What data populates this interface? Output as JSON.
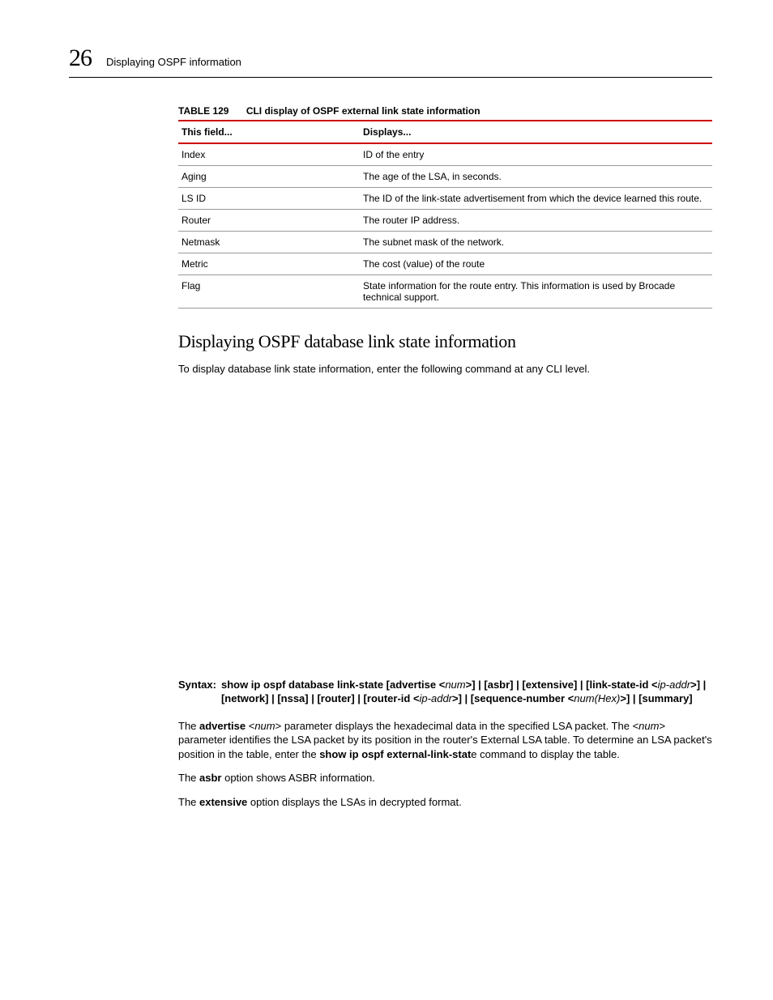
{
  "header": {
    "page_number": "26",
    "title": "Displaying OSPF information"
  },
  "table": {
    "label": "TABLE 129",
    "caption": "CLI display of OSPF external link state information",
    "columns": [
      "This field...",
      "Displays..."
    ],
    "rows": [
      [
        "Index",
        "ID of the entry"
      ],
      [
        "Aging",
        "The age of the LSA, in seconds."
      ],
      [
        "LS ID",
        "The ID of the link-state advertisement from which the device learned this route."
      ],
      [
        "Router",
        "The router IP address."
      ],
      [
        "Netmask",
        "The subnet mask of the network."
      ],
      [
        "Metric",
        "The cost (value) of the route"
      ],
      [
        "Flag",
        "State information for the route entry. This information is used by Brocade technical support."
      ]
    ]
  },
  "section": {
    "heading": "Displaying OSPF database link state information",
    "intro": "To display database link state information, enter the following command at any CLI level.",
    "syntax_label": "Syntax:",
    "syntax": {
      "s0": "show ip ospf database link-state [advertise <",
      "p0": "num",
      "s1": ">] | [asbr] | [extensive] | [link-state-id <",
      "p1": "ip-addr",
      "s2": ">] | [network] | [nssa] | [router] | [router-id <",
      "p2": "ip-addr",
      "s3": ">] | [sequence-number <",
      "p3": "num(Hex)",
      "s4": ">] | [summary]"
    },
    "para1": {
      "t0": "The ",
      "b0": "advertise",
      "t1": " <",
      "i0": "num",
      "t2": "> parameter displays the hexadecimal data in the specified LSA packet. The <",
      "i1": "num",
      "t3": "> parameter identifies the LSA packet by its position in the router's External LSA table. To determine an LSA packet's position in the table, enter the ",
      "b1": "show ip ospf external-link-stat",
      "t4": "e command to display the table."
    },
    "para2": {
      "t0": "The ",
      "b0": "asbr",
      "t1": " option shows ASBR information."
    },
    "para3": {
      "t0": "The ",
      "b0": "extensive",
      "t1": " option displays the LSAs in decrypted format."
    }
  }
}
